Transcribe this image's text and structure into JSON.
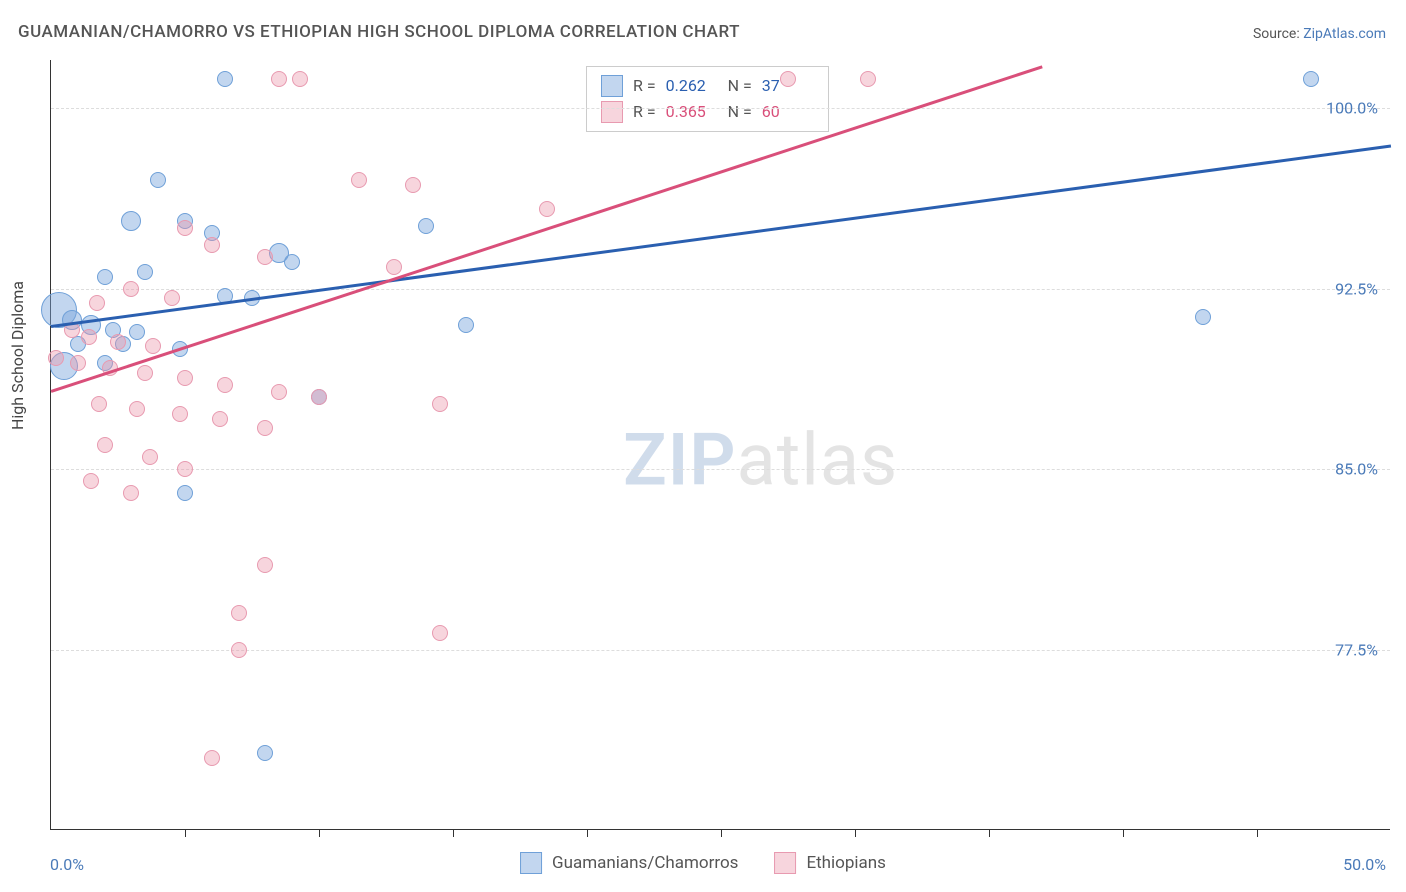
{
  "title": "GUAMANIAN/CHAMORRO VS ETHIOPIAN HIGH SCHOOL DIPLOMA CORRELATION CHART",
  "source_label": "Source:",
  "source_link_text": "ZipAtlas.com",
  "y_axis_label": "High School Diploma",
  "watermark_a": "ZIP",
  "watermark_b": "atlas",
  "x_axis": {
    "min": 0.0,
    "max": 50.0,
    "tick_positions_pct": [
      0,
      10,
      20,
      30,
      40,
      50,
      60,
      70,
      80,
      90,
      100
    ],
    "label_left": "0.0%",
    "label_right": "50.0%"
  },
  "y_axis": {
    "min": 70.0,
    "max": 102.0,
    "gridlines": [
      {
        "value": 100.0,
        "label": "100.0%"
      },
      {
        "value": 92.5,
        "label": "92.5%"
      },
      {
        "value": 85.0,
        "label": "85.0%"
      },
      {
        "value": 77.5,
        "label": "77.5%"
      }
    ]
  },
  "series": [
    {
      "name": "Guamanians/Chamorros",
      "color_fill": "rgba(120,165,220,0.45)",
      "color_stroke": "#6fa0d8",
      "trend_color": "#2a5fb0",
      "R_label": "R =",
      "R_value": "0.262",
      "N_label": "N =",
      "N_value": "37",
      "points": [
        {
          "x": 47.0,
          "y": 101.2,
          "r": 8
        },
        {
          "x": 6.5,
          "y": 101.2,
          "r": 8
        },
        {
          "x": 4.0,
          "y": 97.0,
          "r": 8
        },
        {
          "x": 3.0,
          "y": 95.3,
          "r": 10
        },
        {
          "x": 5.0,
          "y": 95.3,
          "r": 8
        },
        {
          "x": 6.0,
          "y": 94.8,
          "r": 8
        },
        {
          "x": 8.5,
          "y": 94.0,
          "r": 10
        },
        {
          "x": 9.0,
          "y": 93.6,
          "r": 8
        },
        {
          "x": 14.0,
          "y": 95.1,
          "r": 8
        },
        {
          "x": 2.0,
          "y": 93.0,
          "r": 8
        },
        {
          "x": 3.5,
          "y": 93.2,
          "r": 8
        },
        {
          "x": 6.5,
          "y": 92.2,
          "r": 8
        },
        {
          "x": 0.3,
          "y": 91.6,
          "r": 18
        },
        {
          "x": 0.8,
          "y": 91.2,
          "r": 10
        },
        {
          "x": 1.5,
          "y": 91.0,
          "r": 10
        },
        {
          "x": 2.3,
          "y": 90.8,
          "r": 8
        },
        {
          "x": 3.2,
          "y": 90.7,
          "r": 8
        },
        {
          "x": 1.0,
          "y": 90.2,
          "r": 8
        },
        {
          "x": 2.7,
          "y": 90.2,
          "r": 8
        },
        {
          "x": 4.8,
          "y": 90.0,
          "r": 8
        },
        {
          "x": 7.5,
          "y": 92.1,
          "r": 8
        },
        {
          "x": 0.5,
          "y": 89.3,
          "r": 14
        },
        {
          "x": 2.0,
          "y": 89.4,
          "r": 8
        },
        {
          "x": 10.0,
          "y": 88.0,
          "r": 8
        },
        {
          "x": 15.5,
          "y": 91.0,
          "r": 8
        },
        {
          "x": 5.0,
          "y": 84.0,
          "r": 8
        },
        {
          "x": 8.0,
          "y": 73.2,
          "r": 8
        },
        {
          "x": 43.0,
          "y": 91.3,
          "r": 8
        }
      ],
      "trend_start": {
        "x": 0.0,
        "y": 91.0
      },
      "trend_end": {
        "x": 50.0,
        "y": 98.5
      }
    },
    {
      "name": "Ethiopians",
      "color_fill": "rgba(235,150,170,0.4)",
      "color_stroke": "#e89ab0",
      "trend_color": "#d94f7a",
      "R_label": "R =",
      "R_value": "0.365",
      "N_label": "N =",
      "N_value": "60",
      "points": [
        {
          "x": 8.5,
          "y": 101.2,
          "r": 8
        },
        {
          "x": 9.3,
          "y": 101.2,
          "r": 8
        },
        {
          "x": 27.5,
          "y": 101.2,
          "r": 8
        },
        {
          "x": 30.5,
          "y": 101.2,
          "r": 8
        },
        {
          "x": 11.5,
          "y": 97.0,
          "r": 8
        },
        {
          "x": 13.5,
          "y": 96.8,
          "r": 8
        },
        {
          "x": 18.5,
          "y": 95.8,
          "r": 8
        },
        {
          "x": 5.0,
          "y": 95.0,
          "r": 8
        },
        {
          "x": 6.0,
          "y": 94.3,
          "r": 8
        },
        {
          "x": 8.0,
          "y": 93.8,
          "r": 8
        },
        {
          "x": 12.8,
          "y": 93.4,
          "r": 8
        },
        {
          "x": 3.0,
          "y": 92.5,
          "r": 8
        },
        {
          "x": 4.5,
          "y": 92.1,
          "r": 8
        },
        {
          "x": 1.7,
          "y": 91.9,
          "r": 8
        },
        {
          "x": 0.8,
          "y": 90.8,
          "r": 8
        },
        {
          "x": 1.4,
          "y": 90.5,
          "r": 8
        },
        {
          "x": 2.5,
          "y": 90.3,
          "r": 8
        },
        {
          "x": 3.8,
          "y": 90.1,
          "r": 8
        },
        {
          "x": 0.2,
          "y": 89.6,
          "r": 8
        },
        {
          "x": 1.0,
          "y": 89.4,
          "r": 8
        },
        {
          "x": 2.2,
          "y": 89.2,
          "r": 8
        },
        {
          "x": 3.5,
          "y": 89.0,
          "r": 8
        },
        {
          "x": 5.0,
          "y": 88.8,
          "r": 8
        },
        {
          "x": 6.5,
          "y": 88.5,
          "r": 8
        },
        {
          "x": 8.5,
          "y": 88.2,
          "r": 8
        },
        {
          "x": 10.0,
          "y": 88.0,
          "r": 8
        },
        {
          "x": 1.8,
          "y": 87.7,
          "r": 8
        },
        {
          "x": 3.2,
          "y": 87.5,
          "r": 8
        },
        {
          "x": 4.8,
          "y": 87.3,
          "r": 8
        },
        {
          "x": 6.3,
          "y": 87.1,
          "r": 8
        },
        {
          "x": 8.0,
          "y": 86.7,
          "r": 8
        },
        {
          "x": 14.5,
          "y": 87.7,
          "r": 8
        },
        {
          "x": 2.0,
          "y": 86.0,
          "r": 8
        },
        {
          "x": 3.7,
          "y": 85.5,
          "r": 8
        },
        {
          "x": 5.0,
          "y": 85.0,
          "r": 8
        },
        {
          "x": 1.5,
          "y": 84.5,
          "r": 8
        },
        {
          "x": 3.0,
          "y": 84.0,
          "r": 8
        },
        {
          "x": 8.0,
          "y": 81.0,
          "r": 8
        },
        {
          "x": 7.0,
          "y": 79.0,
          "r": 8
        },
        {
          "x": 14.5,
          "y": 78.2,
          "r": 8
        },
        {
          "x": 7.0,
          "y": 77.5,
          "r": 8
        },
        {
          "x": 6.0,
          "y": 73.0,
          "r": 8
        }
      ],
      "trend_start": {
        "x": 0.0,
        "y": 88.3
      },
      "trend_end": {
        "x": 37.0,
        "y": 101.8
      }
    }
  ],
  "bottom_legend": [
    {
      "swatch_fill": "rgba(120,165,220,0.45)",
      "swatch_stroke": "#6fa0d8",
      "label": "Guamanians/Chamorros"
    },
    {
      "swatch_fill": "rgba(235,150,170,0.4)",
      "swatch_stroke": "#e89ab0",
      "label": "Ethiopians"
    }
  ]
}
